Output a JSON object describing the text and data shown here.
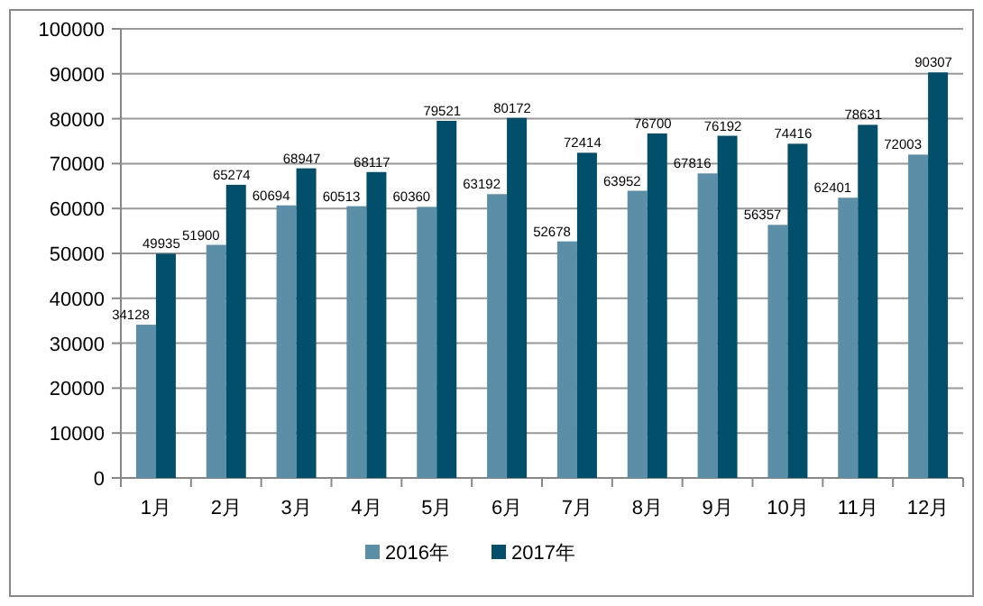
{
  "chart_data": {
    "type": "bar",
    "categories": [
      "1月",
      "2月",
      "3月",
      "4月",
      "5月",
      "6月",
      "7月",
      "8月",
      "9月",
      "10月",
      "11月",
      "12月"
    ],
    "series": [
      {
        "name": "2016年",
        "color": "#5b8fa8",
        "values": [
          34128,
          51900,
          60694,
          60513,
          60360,
          63192,
          52678,
          63952,
          67816,
          56357,
          62401,
          72003
        ]
      },
      {
        "name": "2017年",
        "color": "#024f6b",
        "values": [
          49935,
          65274,
          68947,
          68117,
          79521,
          80172,
          72414,
          76700,
          76192,
          74416,
          78631,
          90307
        ]
      }
    ],
    "ylim": [
      0,
      100000
    ],
    "yticks": [
      0,
      10000,
      20000,
      30000,
      40000,
      50000,
      60000,
      70000,
      80000,
      90000,
      100000
    ],
    "grid": "y",
    "legend": "bottom",
    "data_labels": true
  }
}
